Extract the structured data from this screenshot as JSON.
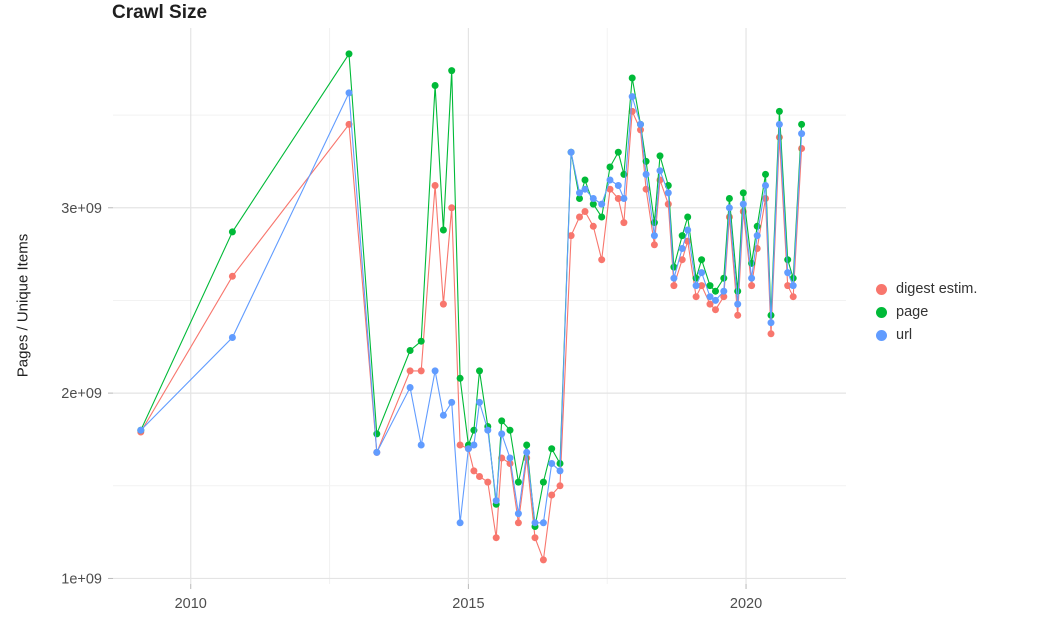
{
  "chart_data": {
    "type": "line",
    "title": "Crawl Size",
    "xlabel": "",
    "ylabel": "Pages / Unique Items",
    "legend_position": "right",
    "grid": "light gray major and minor gridlines on white background",
    "xlim": [
      2008.6,
      2021.8
    ],
    "ylim_billions": [
      0.97,
      3.97
    ],
    "x_ticks": [
      {
        "value": 2010,
        "label": "2010"
      },
      {
        "value": 2015,
        "label": "2015"
      },
      {
        "value": 2020,
        "label": "2020"
      }
    ],
    "x_minor": [
      2012.5,
      2017.5
    ],
    "y_ticks": [
      {
        "value": 1,
        "label": "1e+09"
      },
      {
        "value": 2,
        "label": "2e+09"
      },
      {
        "value": 3,
        "label": "3e+09"
      }
    ],
    "y_minor": [
      1.5,
      2.5,
      3.5
    ],
    "unit": "billions of pages / unique items (1e9)",
    "x": [
      2009.1,
      2010.75,
      2012.85,
      2013.35,
      2013.95,
      2014.15,
      2014.4,
      2014.55,
      2014.7,
      2014.85,
      2015.0,
      2015.1,
      2015.2,
      2015.35,
      2015.5,
      2015.6,
      2015.75,
      2015.9,
      2016.05,
      2016.2,
      2016.35,
      2016.5,
      2016.65,
      2016.85,
      2017.0,
      2017.1,
      2017.25,
      2017.4,
      2017.55,
      2017.7,
      2017.8,
      2017.95,
      2018.1,
      2018.2,
      2018.35,
      2018.45,
      2018.6,
      2018.7,
      2018.85,
      2018.95,
      2019.1,
      2019.2,
      2019.35,
      2019.45,
      2019.6,
      2019.7,
      2019.85,
      2019.95,
      2020.1,
      2020.2,
      2020.35,
      2020.45,
      2020.6,
      2020.75,
      2020.85,
      2021.0
    ],
    "series": [
      {
        "name": "digest estim.",
        "color": "#F8766D",
        "values": [
          1.79,
          2.63,
          3.45,
          1.68,
          2.12,
          2.12,
          3.12,
          2.48,
          3.0,
          1.72,
          1.7,
          1.58,
          1.55,
          1.52,
          1.22,
          1.65,
          1.62,
          1.3,
          1.65,
          1.22,
          1.1,
          1.45,
          1.5,
          2.85,
          2.95,
          2.98,
          2.9,
          2.72,
          3.1,
          3.05,
          2.92,
          3.52,
          3.42,
          3.1,
          2.8,
          3.15,
          3.02,
          2.58,
          2.72,
          2.82,
          2.52,
          2.58,
          2.48,
          2.45,
          2.52,
          2.95,
          2.42,
          2.98,
          2.58,
          2.78,
          3.05,
          2.32,
          3.38,
          2.58,
          2.52,
          3.32
        ]
      },
      {
        "name": "page",
        "color": "#00BA38",
        "values": [
          1.8,
          2.87,
          3.83,
          1.78,
          2.23,
          2.28,
          3.66,
          2.88,
          3.74,
          2.08,
          1.72,
          1.8,
          2.12,
          1.82,
          1.4,
          1.85,
          1.8,
          1.52,
          1.72,
          1.28,
          1.52,
          1.7,
          1.62,
          3.3,
          3.05,
          3.15,
          3.02,
          2.95,
          3.22,
          3.3,
          3.18,
          3.7,
          3.45,
          3.25,
          2.92,
          3.28,
          3.12,
          2.68,
          2.85,
          2.95,
          2.62,
          2.72,
          2.58,
          2.55,
          2.62,
          3.05,
          2.55,
          3.08,
          2.7,
          2.9,
          3.18,
          2.42,
          3.52,
          2.72,
          2.62,
          3.45
        ]
      },
      {
        "name": "url",
        "color": "#619CFF",
        "values": [
          1.8,
          2.3,
          3.62,
          1.68,
          2.03,
          1.72,
          2.12,
          1.88,
          1.95,
          1.3,
          1.7,
          1.72,
          1.95,
          1.8,
          1.42,
          1.78,
          1.65,
          1.35,
          1.68,
          1.3,
          1.3,
          1.62,
          1.58,
          3.3,
          3.08,
          3.1,
          3.05,
          3.02,
          3.15,
          3.12,
          3.05,
          3.6,
          3.45,
          3.18,
          2.85,
          3.2,
          3.08,
          2.62,
          2.78,
          2.88,
          2.58,
          2.65,
          2.52,
          2.5,
          2.55,
          3.0,
          2.48,
          3.02,
          2.62,
          2.85,
          3.12,
          2.38,
          3.45,
          2.65,
          2.58,
          3.4
        ]
      }
    ]
  }
}
